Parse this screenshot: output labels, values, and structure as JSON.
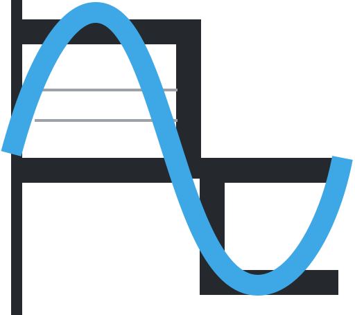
{
  "icon": {
    "name": "sine-square-wave-icon",
    "description_hidden": false,
    "colors": {
      "background": "#ffffff",
      "square_wave": "#25292d",
      "threshold_lines": "#9ea2a6",
      "sine_wave": "#3ea7e5"
    }
  }
}
